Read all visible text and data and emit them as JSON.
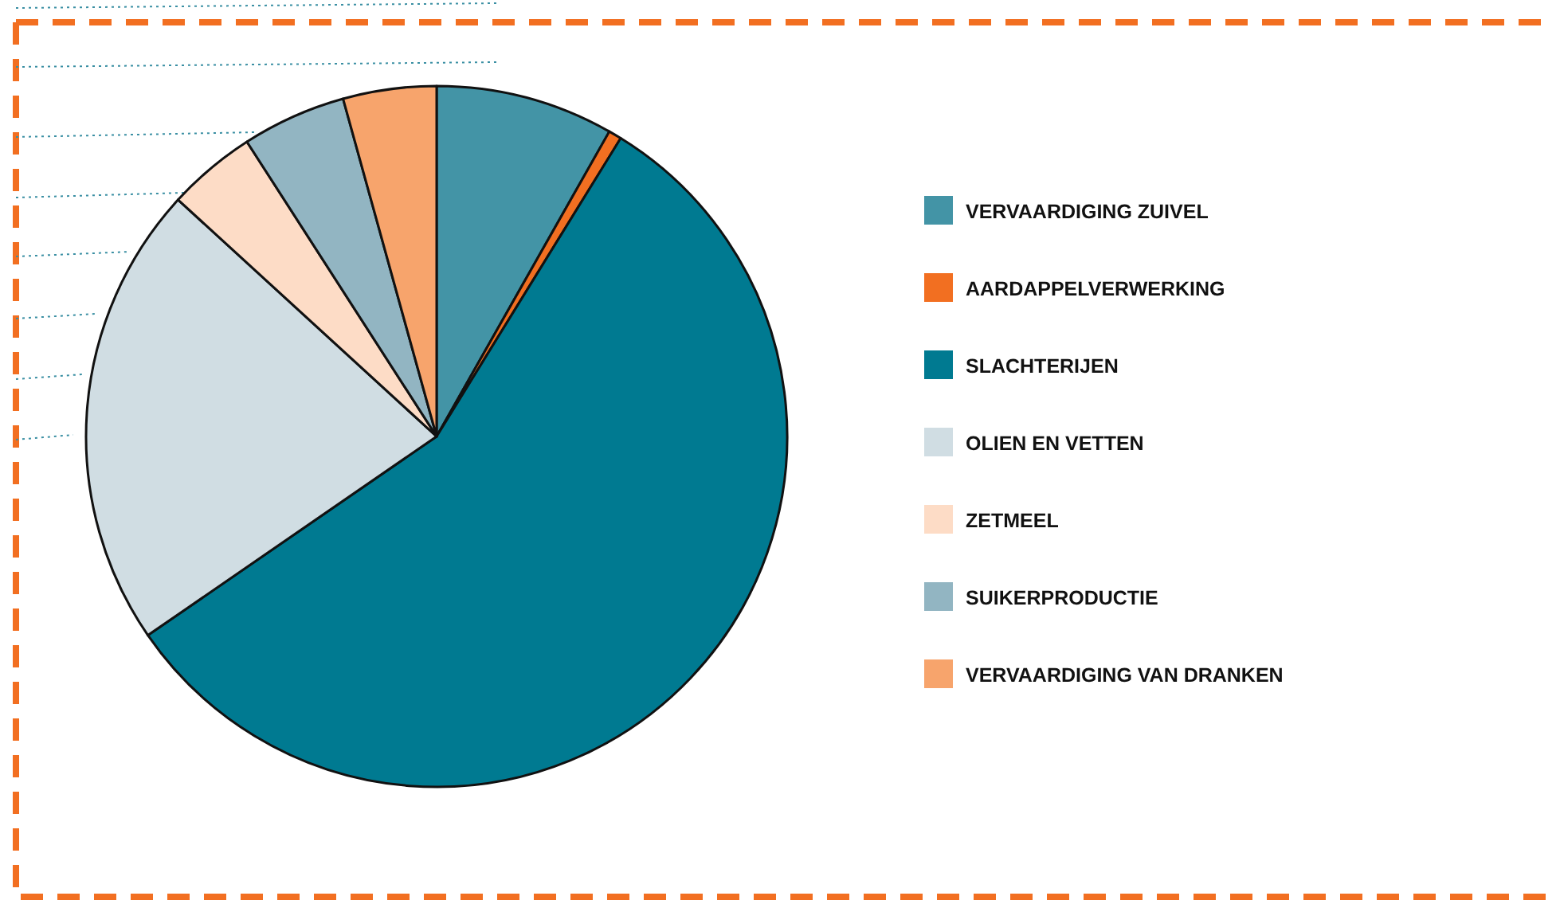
{
  "chart_data": {
    "type": "pie",
    "categories": [
      "VERVAARDIGING ZUIVEL",
      "AARDAPPELVERWERKING",
      "SLACHTERIJEN",
      "OLIEN EN VETTEN",
      "ZETMEEL",
      "SUIKERPRODUCTIE",
      "VERVAARDIGING VAN DRANKEN"
    ],
    "values": [
      8.2,
      0.6,
      56.6,
      21.4,
      4.1,
      4.8,
      4.3
    ],
    "colors": [
      "#4394a6",
      "#f26f21",
      "#007a91",
      "#d0dde3",
      "#fddcc6",
      "#92b5c2",
      "#f7a46c"
    ],
    "legend": "right"
  }
}
